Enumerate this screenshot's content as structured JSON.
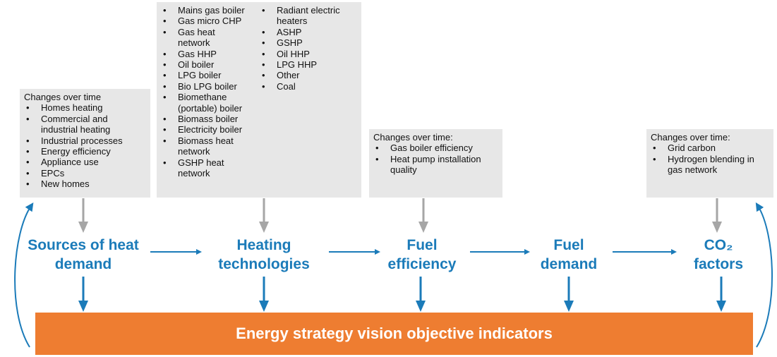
{
  "boxes": [
    {
      "title": "Changes over time",
      "items": [
        "Homes heating",
        "Commercial and industrial heating",
        "Industrial processes",
        "Energy efficiency",
        "Appliance use",
        "EPCs",
        "New homes"
      ]
    },
    {
      "items": [
        "Mains gas boiler",
        "Gas micro CHP",
        "Gas heat network",
        "Gas HHP",
        "Oil boiler",
        "LPG boiler",
        "Bio LPG boiler",
        "Biomethane (portable) boiler",
        "Biomass boiler",
        "Electricity boiler",
        "Biomass heat network",
        "GSHP heat network",
        "Radiant electric heaters",
        "ASHP",
        "GSHP",
        "Oil HHP",
        "LPG HHP",
        "Other",
        "Coal"
      ]
    },
    {
      "title": "Changes over time:",
      "items": [
        "Gas boiler efficiency",
        "Heat pump installation quality"
      ]
    },
    {
      "title": "Changes over time:",
      "items": [
        "Grid carbon",
        "Hydrogen blending in gas network"
      ]
    }
  ],
  "nodes": [
    {
      "label": "Sources of heat demand"
    },
    {
      "label": "Heating technologies"
    },
    {
      "label": "Fuel efficiency"
    },
    {
      "label": "Fuel demand"
    },
    {
      "label": "CO₂ factors"
    }
  ],
  "bar": {
    "label": "Energy strategy vision objective indicators"
  }
}
